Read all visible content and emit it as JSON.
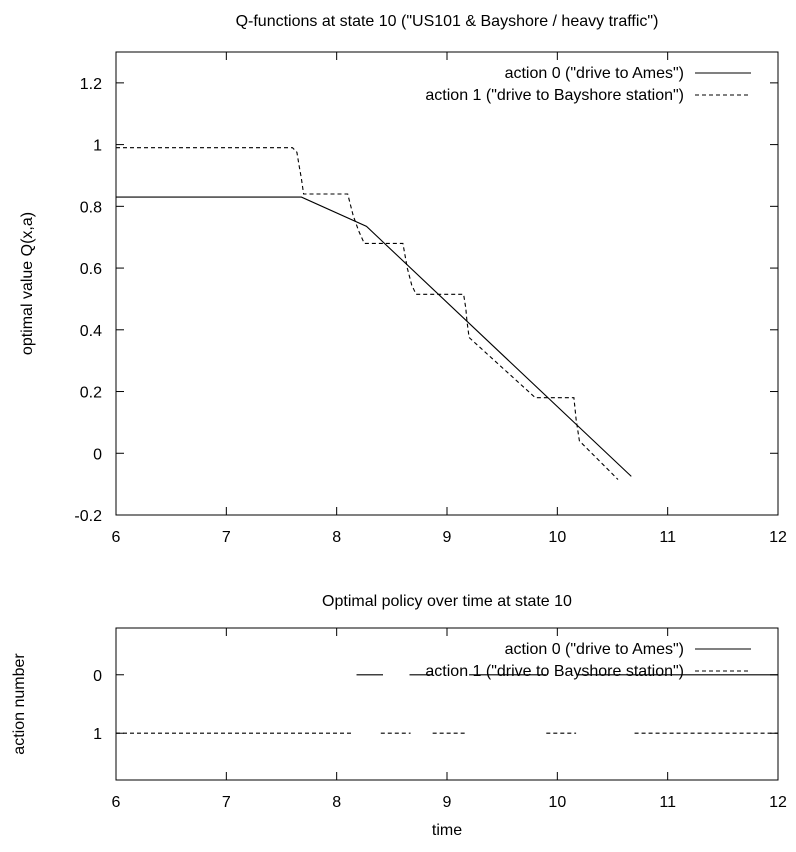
{
  "chart_data": [
    {
      "type": "line",
      "title": "Q-functions at state 10 (\"US101 & Bayshore / heavy traffic\")",
      "xlabel": "",
      "ylabel": "optimal value Q(x,a)",
      "xlim": [
        6,
        12
      ],
      "ylim": [
        -0.2,
        1.3
      ],
      "xticks": [
        "6",
        "7",
        "8",
        "9",
        "10",
        "11",
        "12"
      ],
      "yticks": [
        "-0.2",
        "0",
        "0.2",
        "0.4",
        "0.6",
        "0.8",
        "1",
        "1.2"
      ],
      "legend_position": "top-right",
      "series": [
        {
          "name": "action 0 (\"drive to Ames\")",
          "style": "solid",
          "points": [
            [
              6.0,
              0.83
            ],
            [
              7.68,
              0.83
            ],
            [
              8.27,
              0.735
            ],
            [
              10.67,
              -0.075
            ]
          ]
        },
        {
          "name": "action 1 (\"drive to Bayshore station\")",
          "style": "dashed",
          "points": [
            [
              6.0,
              0.99
            ],
            [
              7.6,
              0.99
            ],
            [
              7.64,
              0.975
            ],
            [
              7.66,
              0.93
            ],
            [
              7.68,
              0.89
            ],
            [
              7.7,
              0.84
            ],
            [
              8.1,
              0.84
            ],
            [
              8.15,
              0.77
            ],
            [
              8.2,
              0.72
            ],
            [
              8.25,
              0.68
            ],
            [
              8.6,
              0.68
            ],
            [
              8.64,
              0.6
            ],
            [
              8.68,
              0.545
            ],
            [
              8.72,
              0.515
            ],
            [
              9.15,
              0.515
            ],
            [
              9.17,
              0.47
            ],
            [
              9.18,
              0.43
            ],
            [
              9.2,
              0.375
            ],
            [
              9.8,
              0.18
            ],
            [
              10.15,
              0.18
            ],
            [
              10.17,
              0.11
            ],
            [
              10.2,
              0.04
            ],
            [
              10.55,
              -0.085
            ]
          ]
        }
      ]
    },
    {
      "type": "line",
      "title": "Optimal policy over time at state 10",
      "xlabel": "time",
      "ylabel": "action number",
      "xlim": [
        6,
        12
      ],
      "ylim": [
        1.8,
        -0.8
      ],
      "xticks": [
        "6",
        "7",
        "8",
        "9",
        "10",
        "11",
        "12"
      ],
      "yticks": [
        "0",
        "1"
      ],
      "legend_position": "top-right",
      "series": [
        {
          "name": "action 0 (\"drive to Ames\")",
          "style": "solid",
          "value": 0,
          "segments": [
            [
              8.18,
              8.42
            ],
            [
              8.66,
              8.87
            ],
            [
              9.2,
              9.9
            ],
            [
              10.18,
              12.0
            ]
          ]
        },
        {
          "name": "action 1 (\"drive to Bayshore station\")",
          "style": "dashed",
          "value": 1,
          "segments": [
            [
              6.0,
              8.15
            ],
            [
              8.4,
              8.67
            ],
            [
              8.87,
              9.17
            ],
            [
              9.9,
              10.17
            ],
            [
              10.7,
              12.0
            ]
          ]
        }
      ]
    }
  ]
}
